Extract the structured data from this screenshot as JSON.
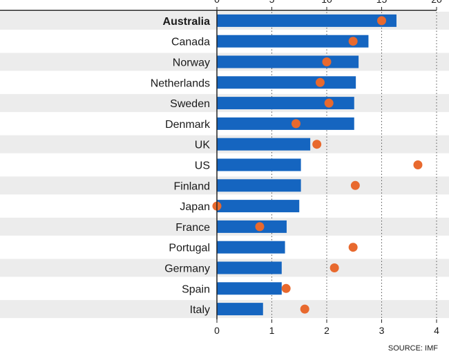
{
  "chart_data": {
    "type": "bar",
    "categories": [
      "Australia",
      "Canada",
      "Norway",
      "Netherlands",
      "Sweden",
      "Denmark",
      "UK",
      "US",
      "Finland",
      "Japan",
      "France",
      "Portugal",
      "Germany",
      "Spain",
      "Italy"
    ],
    "highlight_category": "Australia",
    "bar_axis": {
      "ticks": [
        "0",
        "1",
        "2",
        "3",
        "4"
      ],
      "range": [
        0,
        4
      ],
      "position": "bottom"
    },
    "dot_axis": {
      "ticks": [
        "0",
        "5",
        "10",
        "15",
        "20"
      ],
      "range": [
        0,
        20
      ],
      "position": "top"
    },
    "series": [
      {
        "kind": "bar",
        "color": "#1565c0",
        "values": [
          3.27,
          2.76,
          2.58,
          2.53,
          2.5,
          2.5,
          1.7,
          1.53,
          1.53,
          1.5,
          1.27,
          1.24,
          1.18,
          1.18,
          0.84
        ]
      },
      {
        "kind": "dot",
        "color": "#e8692e",
        "values": [
          15.0,
          12.4,
          10.0,
          9.4,
          10.2,
          7.2,
          9.1,
          18.3,
          12.6,
          0.0,
          3.9,
          12.4,
          10.7,
          6.3,
          8.0
        ]
      }
    ],
    "grid": true,
    "source": "SOURCE: IMF"
  }
}
